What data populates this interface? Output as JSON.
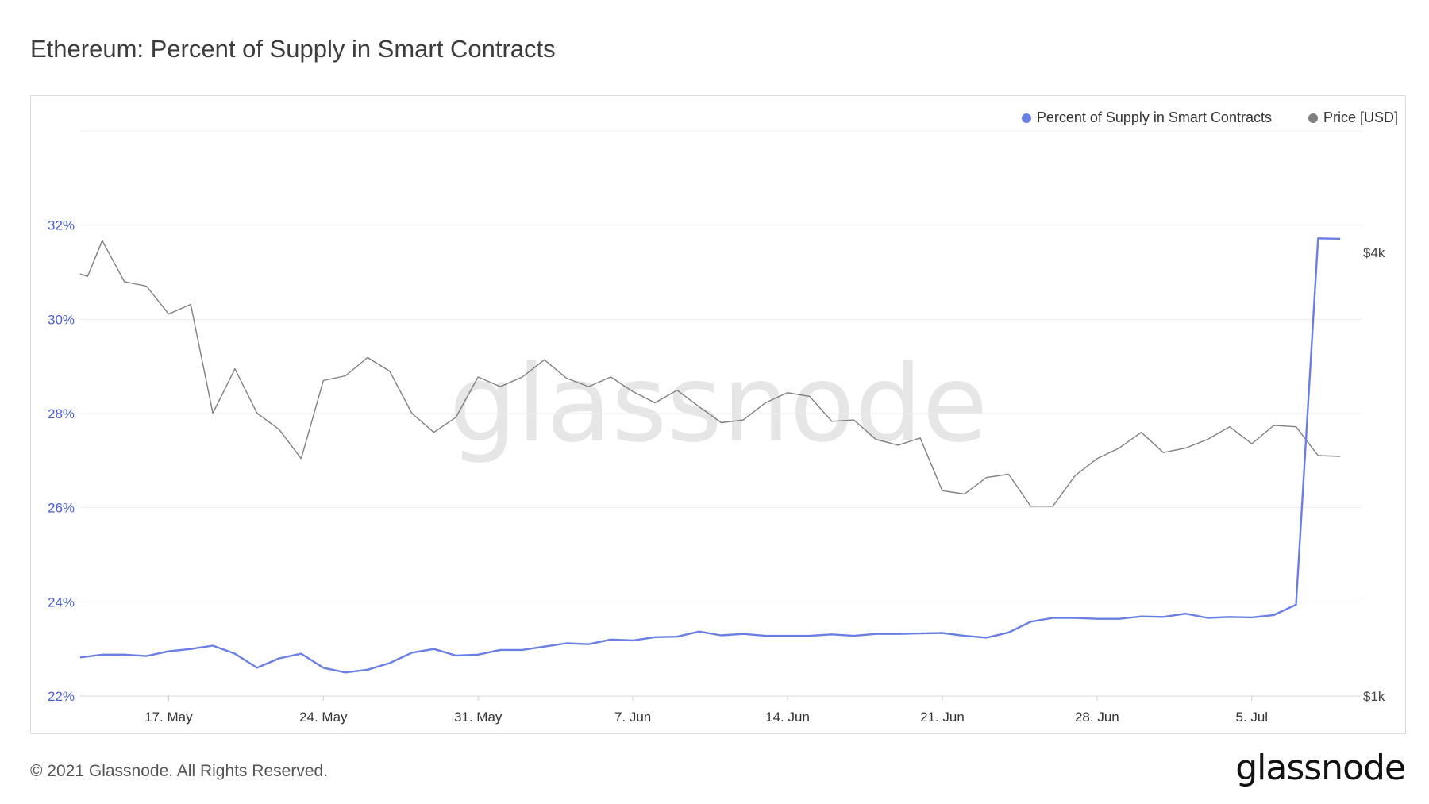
{
  "title": "Ethereum: Percent of Supply in Smart Contracts",
  "footer": "© 2021 Glassnode. All Rights Reserved.",
  "logo": "glassnode",
  "watermark": "glassnode",
  "legend": [
    {
      "label": "Percent of Supply in Smart Contracts",
      "color": "#6a7fe3"
    },
    {
      "label": "Price [USD]",
      "color": "#7f7f7f"
    }
  ],
  "chart_data": {
    "type": "line",
    "x_labels": [
      "17. May",
      "24. May",
      "31. May",
      "7. Jun",
      "14. Jun",
      "21. Jun",
      "28. Jun",
      "5. Jul"
    ],
    "y_left_ticks": [
      "22%",
      "24%",
      "26%",
      "28%",
      "30%",
      "32%"
    ],
    "y_left_range": [
      22,
      34
    ],
    "y_right_ticks": [
      "$1k",
      "$4k"
    ],
    "y_right_scale": "log",
    "y_right_range": [
      1000,
      4000
    ],
    "x_start": "2021-05-13",
    "x_end": "2021-07-10",
    "grid": true,
    "legend_position": "top-right",
    "series": [
      {
        "name": "Percent of Supply in Smart Contracts",
        "color": "#6a7fe3",
        "axis": "left",
        "points": [
          [
            "2021-05-13",
            22.82
          ],
          [
            "2021-05-14",
            22.88
          ],
          [
            "2021-05-15",
            22.88
          ],
          [
            "2021-05-16",
            22.85
          ],
          [
            "2021-05-17",
            22.95
          ],
          [
            "2021-05-18",
            23.0
          ],
          [
            "2021-05-19",
            23.07
          ],
          [
            "2021-05-20",
            22.9
          ],
          [
            "2021-05-21",
            22.6
          ],
          [
            "2021-05-22",
            22.8
          ],
          [
            "2021-05-23",
            22.9
          ],
          [
            "2021-05-24",
            22.6
          ],
          [
            "2021-05-25",
            22.5
          ],
          [
            "2021-05-26",
            22.56
          ],
          [
            "2021-05-27",
            22.7
          ],
          [
            "2021-05-28",
            22.92
          ],
          [
            "2021-05-29",
            23.0
          ],
          [
            "2021-05-30",
            22.86
          ],
          [
            "2021-05-31",
            22.88
          ],
          [
            "2021-06-01",
            22.98
          ],
          [
            "2021-06-02",
            22.98
          ],
          [
            "2021-06-03",
            23.05
          ],
          [
            "2021-06-04",
            23.12
          ],
          [
            "2021-06-05",
            23.1
          ],
          [
            "2021-06-06",
            23.2
          ],
          [
            "2021-06-07",
            23.18
          ],
          [
            "2021-06-08",
            23.25
          ],
          [
            "2021-06-09",
            23.26
          ],
          [
            "2021-06-10",
            23.37
          ],
          [
            "2021-06-11",
            23.29
          ],
          [
            "2021-06-12",
            23.32
          ],
          [
            "2021-06-13",
            23.28
          ],
          [
            "2021-06-14",
            23.28
          ],
          [
            "2021-06-15",
            23.28
          ],
          [
            "2021-06-16",
            23.31
          ],
          [
            "2021-06-17",
            23.28
          ],
          [
            "2021-06-18",
            23.32
          ],
          [
            "2021-06-19",
            23.32
          ],
          [
            "2021-06-20",
            23.33
          ],
          [
            "2021-06-21",
            23.34
          ],
          [
            "2021-06-22",
            23.28
          ],
          [
            "2021-06-23",
            23.24
          ],
          [
            "2021-06-24",
            23.35
          ],
          [
            "2021-06-25",
            23.58
          ],
          [
            "2021-06-26",
            23.66
          ],
          [
            "2021-06-27",
            23.66
          ],
          [
            "2021-06-28",
            23.64
          ],
          [
            "2021-06-29",
            23.64
          ],
          [
            "2021-06-30",
            23.69
          ],
          [
            "2021-07-01",
            23.68
          ],
          [
            "2021-07-02",
            23.75
          ],
          [
            "2021-07-03",
            23.66
          ],
          [
            "2021-07-04",
            23.68
          ],
          [
            "2021-07-05",
            23.67
          ],
          [
            "2021-07-06",
            23.72
          ],
          [
            "2021-07-07",
            23.94
          ],
          [
            "2021-07-08",
            31.72
          ],
          [
            "2021-07-09",
            31.71
          ]
        ]
      },
      {
        "name": "Price [USD]",
        "color": "#7f7f7f",
        "axis": "right",
        "points": [
          [
            "2021-05-13",
            3740
          ],
          [
            "2021-05-13T08:00",
            3710
          ],
          [
            "2021-05-14",
            4150
          ],
          [
            "2021-05-15",
            3650
          ],
          [
            "2021-05-16",
            3600
          ],
          [
            "2021-05-17",
            3300
          ],
          [
            "2021-05-18",
            3400
          ],
          [
            "2021-05-19",
            2420
          ],
          [
            "2021-05-20",
            2780
          ],
          [
            "2021-05-21",
            2420
          ],
          [
            "2021-05-22",
            2300
          ],
          [
            "2021-05-23",
            2100
          ],
          [
            "2021-05-24",
            2680
          ],
          [
            "2021-05-25",
            2720
          ],
          [
            "2021-05-26",
            2880
          ],
          [
            "2021-05-27",
            2760
          ],
          [
            "2021-05-28",
            2420
          ],
          [
            "2021-05-29",
            2280
          ],
          [
            "2021-05-30",
            2390
          ],
          [
            "2021-05-31",
            2710
          ],
          [
            "2021-06-01",
            2630
          ],
          [
            "2021-06-02",
            2710
          ],
          [
            "2021-06-03",
            2860
          ],
          [
            "2021-06-04",
            2700
          ],
          [
            "2021-06-05",
            2630
          ],
          [
            "2021-06-06",
            2710
          ],
          [
            "2021-06-07",
            2590
          ],
          [
            "2021-06-08",
            2500
          ],
          [
            "2021-06-09",
            2600
          ],
          [
            "2021-06-10",
            2470
          ],
          [
            "2021-06-11",
            2350
          ],
          [
            "2021-06-12",
            2370
          ],
          [
            "2021-06-13",
            2500
          ],
          [
            "2021-06-14",
            2580
          ],
          [
            "2021-06-15",
            2550
          ],
          [
            "2021-06-16",
            2360
          ],
          [
            "2021-06-17",
            2370
          ],
          [
            "2021-06-18",
            2230
          ],
          [
            "2021-06-19",
            2190
          ],
          [
            "2021-06-20",
            2240
          ],
          [
            "2021-06-21",
            1900
          ],
          [
            "2021-06-22",
            1880
          ],
          [
            "2021-06-23",
            1980
          ],
          [
            "2021-06-24",
            2000
          ],
          [
            "2021-06-25",
            1810
          ],
          [
            "2021-06-26",
            1810
          ],
          [
            "2021-06-27",
            1990
          ],
          [
            "2021-06-28",
            2100
          ],
          [
            "2021-06-29",
            2170
          ],
          [
            "2021-06-30",
            2280
          ],
          [
            "2021-07-01",
            2140
          ],
          [
            "2021-07-02",
            2170
          ],
          [
            "2021-07-03",
            2230
          ],
          [
            "2021-07-04",
            2320
          ],
          [
            "2021-07-05",
            2200
          ],
          [
            "2021-07-06",
            2330
          ],
          [
            "2021-07-07",
            2320
          ],
          [
            "2021-07-08",
            2120
          ],
          [
            "2021-07-09",
            2115
          ]
        ]
      }
    ]
  }
}
